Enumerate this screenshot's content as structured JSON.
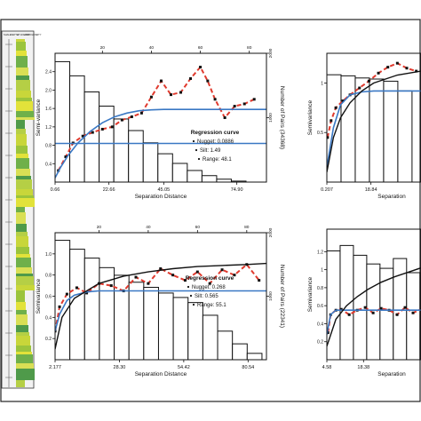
{
  "figure": {
    "well_log": {
      "header_labels": [
        "SHALE",
        "DEPTH",
        "LITHOLOGY",
        "HOMOGENEITY"
      ]
    }
  },
  "chart_data": [
    {
      "id": "panel_tl",
      "type": "bar+line",
      "xlabel": "Separation Distance",
      "ylabel": "Semi-variance",
      "y2label": "Number of Pairs (34368)",
      "xlim": [
        0.66,
        87
      ],
      "x_tick_labels": [
        "0.66",
        "22.66",
        "45.05",
        "74.90"
      ],
      "x_tick_values": [
        0.66,
        22.66,
        45.05,
        74.9
      ],
      "top_tick_labels": [
        "0",
        "20",
        "40",
        "60",
        "80"
      ],
      "top_tick_values": [
        0,
        20,
        40,
        60,
        80
      ],
      "ylim": [
        0,
        2.8
      ],
      "y_tick_values": [
        0.4,
        0.8,
        1.2,
        1.6,
        2.0,
        2.4
      ],
      "y_tick_labels": [
        "0.4",
        "0.8",
        "1.2",
        "1.6",
        "2.0",
        "2.4"
      ],
      "y2lim": [
        0,
        2000
      ],
      "y2_tick_labels": [
        "1000",
        "2000"
      ],
      "y2_tick_values": [
        1000,
        2000
      ],
      "bars": {
        "edges": [
          0.66,
          6.66,
          12.66,
          18.66,
          24.66,
          30.66,
          36.66,
          42.66,
          48.66,
          54.66,
          60.66,
          66.66,
          72.66,
          78.66
        ],
        "counts": [
          1870,
          1650,
          1400,
          1180,
          980,
          800,
          610,
          440,
          290,
          180,
          100,
          45,
          15
        ]
      },
      "series": [
        {
          "kind": "experimental",
          "color": "#e03a2e",
          "x": [
            2,
            5,
            8,
            12,
            16,
            20,
            24,
            28,
            32,
            36,
            40,
            44,
            48,
            52,
            56,
            60,
            63,
            66,
            70,
            74,
            78,
            82
          ],
          "y": [
            0.25,
            0.55,
            0.85,
            1.0,
            1.08,
            1.15,
            1.2,
            1.35,
            1.42,
            1.5,
            1.85,
            2.2,
            1.9,
            1.95,
            2.25,
            2.5,
            2.2,
            1.8,
            1.4,
            1.65,
            1.7,
            1.8
          ]
        },
        {
          "kind": "model",
          "color": "#3a78c4",
          "x": [
            0.66,
            3,
            6,
            10,
            15,
            20,
            25,
            30,
            35,
            40,
            45,
            50,
            55,
            60,
            70,
            80,
            87
          ],
          "y": [
            0.09,
            0.33,
            0.58,
            0.85,
            1.1,
            1.29,
            1.42,
            1.5,
            1.55,
            1.57,
            1.58,
            1.58,
            1.58,
            1.58,
            1.58,
            1.58,
            1.58
          ]
        },
        {
          "kind": "sill",
          "color": "#3a78c4",
          "x": [
            0.66,
            87
          ],
          "y": [
            0.84,
            0.84
          ]
        }
      ],
      "legend": {
        "title": "Regression curve",
        "items": [
          "Nugget: 0.0886",
          "Silt: 1.49",
          "Range: 48.1"
        ]
      }
    },
    {
      "id": "panel_bl",
      "type": "bar+line",
      "xlabel": "Separation Distance",
      "ylabel": "Semivariance",
      "y2label": "Number of Pairs (22341)",
      "xlim": [
        2.177,
        88
      ],
      "x_tick_labels": [
        "2.177",
        "28.30",
        "54.42",
        "80.54"
      ],
      "x_tick_values": [
        2.177,
        28.3,
        54.42,
        80.54
      ],
      "top_tick_labels": [
        "0",
        "20",
        "40",
        "60",
        "80"
      ],
      "top_tick_values": [
        0,
        20,
        40,
        60,
        80
      ],
      "ylim": [
        0,
        1.2
      ],
      "y_tick_values": [
        0.2,
        0.4,
        0.6,
        0.8,
        1.0
      ],
      "y_tick_labels": [
        "0.2",
        "0.4",
        "0.6",
        "0.8",
        "1.0"
      ],
      "y2lim": [
        0,
        2000
      ],
      "y2_tick_labels": [
        "1000",
        "2000"
      ],
      "y2_tick_values": [
        1000,
        2000
      ],
      "bars": {
        "edges": [
          2.177,
          8.177,
          14.177,
          20.177,
          26.177,
          32.177,
          38.177,
          44.177,
          50.177,
          56.177,
          62.177,
          68.177,
          74.177,
          80.177,
          86.177
        ],
        "counts": [
          1880,
          1740,
          1600,
          1450,
          1330,
          1220,
          1140,
          1050,
          980,
          900,
          700,
          450,
          250,
          100
        ]
      },
      "series": [
        {
          "kind": "experimental",
          "color": "#e03a2e",
          "x": [
            2.2,
            4,
            7,
            11,
            15,
            20,
            25,
            30,
            35,
            40,
            45,
            50,
            55,
            60,
            65,
            70,
            75,
            80,
            85
          ],
          "y": [
            0.27,
            0.5,
            0.62,
            0.68,
            0.63,
            0.72,
            0.7,
            0.65,
            0.78,
            0.72,
            0.86,
            0.8,
            0.75,
            0.83,
            0.72,
            0.85,
            0.8,
            0.9,
            0.75
          ]
        },
        {
          "kind": "model",
          "color": "#3a78c4",
          "x": [
            2.177,
            4,
            7,
            10,
            15,
            20,
            30,
            40,
            50,
            60,
            70,
            80,
            88
          ],
          "y": [
            0.27,
            0.43,
            0.56,
            0.61,
            0.64,
            0.65,
            0.65,
            0.65,
            0.65,
            0.65,
            0.65,
            0.65,
            0.65
          ]
        },
        {
          "kind": "trend",
          "color": "#111111",
          "x": [
            2.177,
            5,
            10,
            20,
            30,
            40,
            50,
            60,
            70,
            80,
            88
          ],
          "y": [
            0.1,
            0.4,
            0.58,
            0.72,
            0.79,
            0.83,
            0.86,
            0.88,
            0.89,
            0.9,
            0.91
          ]
        }
      ],
      "legend": {
        "title": "Regression curve",
        "items": [
          "Nugget: 0.268",
          "Silt: 0.565",
          "Range: 55.1"
        ]
      }
    },
    {
      "id": "panel_tr",
      "type": "bar+line",
      "xlabel": "Separation",
      "ylabel": "Semivariance",
      "xlim": [
        0.207,
        40
      ],
      "x_tick_labels": [
        "0.207",
        "18.84"
      ],
      "x_tick_values": [
        0.207,
        18.84
      ],
      "ylim": [
        0,
        1.3
      ],
      "y_tick_values": [
        0.5,
        1.0
      ],
      "y_tick_labels": [
        "0.5",
        "1"
      ],
      "bars": {
        "edges": [
          0.207,
          6.207,
          12.207,
          18.207,
          24.207,
          30.207,
          36.207
        ],
        "counts": [
          1000,
          990,
          970,
          960,
          940,
          850
        ]
      },
      "series": [
        {
          "kind": "experimental",
          "color": "#e03a2e",
          "x": [
            0.5,
            2,
            4,
            7,
            10,
            14,
            18,
            22,
            26,
            30,
            34,
            38
          ],
          "y": [
            0.45,
            0.62,
            0.75,
            0.82,
            0.88,
            0.95,
            1.02,
            1.1,
            1.16,
            1.2,
            1.15,
            1.12
          ]
        },
        {
          "kind": "model",
          "color": "#3a78c4",
          "x": [
            0.207,
            3,
            6,
            10,
            15,
            20,
            30,
            40
          ],
          "y": [
            0.15,
            0.55,
            0.78,
            0.88,
            0.91,
            0.92,
            0.92,
            0.92
          ]
        },
        {
          "kind": "trend",
          "color": "#111111",
          "x": [
            0.207,
            3,
            6,
            10,
            15,
            20,
            30,
            40
          ],
          "y": [
            0.1,
            0.45,
            0.65,
            0.8,
            0.92,
            1.0,
            1.08,
            1.12
          ]
        }
      ]
    },
    {
      "id": "panel_br",
      "type": "bar+line",
      "xlabel": "Separation",
      "ylabel": "Semivariance",
      "xlim": [
        4.58,
        40
      ],
      "x_tick_labels": [
        "4.58",
        "18.38"
      ],
      "x_tick_values": [
        4.58,
        18.38
      ],
      "ylim": [
        0,
        1.45
      ],
      "y_tick_values": [
        0.2,
        0.4,
        0.6,
        0.8,
        1.0,
        1.2
      ],
      "y_tick_labels": [
        "0.2",
        "0.4",
        "0.6",
        "0.8",
        "1",
        "1.2"
      ],
      "bars": {
        "edges": [
          4.58,
          9.58,
          14.58,
          19.58,
          24.58,
          29.58,
          34.58,
          39.58
        ],
        "counts": [
          1000,
          1050,
          960,
          880,
          840,
          930,
          800
        ]
      },
      "series": [
        {
          "kind": "experimental",
          "color": "#e03a2e",
          "x": [
            5,
            6,
            8,
            10,
            13,
            16,
            19,
            22,
            25,
            28,
            31,
            34,
            37,
            40
          ],
          "y": [
            0.3,
            0.5,
            0.55,
            0.56,
            0.5,
            0.55,
            0.58,
            0.52,
            0.57,
            0.55,
            0.5,
            0.58,
            0.52,
            0.56
          ]
        },
        {
          "kind": "model",
          "color": "#3a78c4",
          "x": [
            4.58,
            6,
            8,
            12,
            20,
            30,
            40
          ],
          "y": [
            0.28,
            0.5,
            0.55,
            0.55,
            0.55,
            0.55,
            0.55
          ]
        },
        {
          "kind": "trend",
          "color": "#111111",
          "x": [
            4.58,
            8,
            12,
            16,
            20,
            25,
            30,
            35,
            40
          ],
          "y": [
            0.15,
            0.45,
            0.6,
            0.7,
            0.78,
            0.86,
            0.92,
            0.97,
            1.02
          ]
        }
      ]
    }
  ]
}
